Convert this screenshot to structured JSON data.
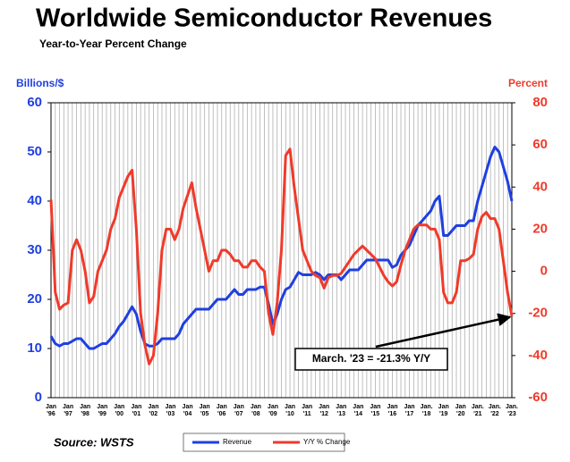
{
  "chart_data": {
    "type": "line",
    "title": "Worldwide Semiconductor Revenues",
    "subtitle": "Year-to-Year Percent Change",
    "y_label": "Billions/$",
    "y2_label": "Percent",
    "source": "Source: WSTS",
    "annotation": "March. '23 = -21.3% Y/Y",
    "categories": [
      "Jan '96",
      null,
      null,
      null,
      "Jan '97",
      null,
      null,
      null,
      "Jan '98",
      null,
      null,
      null,
      "Jan '99",
      null,
      null,
      null,
      "Jan '00",
      null,
      null,
      null,
      "Jan '01",
      null,
      null,
      null,
      "Jan '02",
      null,
      null,
      null,
      "Jan '03",
      null,
      null,
      null,
      "Jan '04",
      null,
      null,
      null,
      "Jan '05",
      null,
      null,
      null,
      "Jan '06",
      null,
      null,
      null,
      "Jan '07",
      null,
      null,
      null,
      "Jan '08",
      null,
      null,
      null,
      "Jan '09",
      null,
      null,
      null,
      "Jan '10",
      null,
      null,
      null,
      "Jan '11",
      null,
      null,
      null,
      "Jan '12",
      null,
      null,
      null,
      "Jan '13",
      null,
      null,
      null,
      "Jan '14",
      null,
      null,
      null,
      "Jan '15",
      null,
      null,
      null,
      "Jan '16",
      null,
      null,
      null,
      "Jan '17",
      null,
      null,
      null,
      "Jan. '18",
      null,
      null,
      null,
      "Jan '19",
      null,
      null,
      null,
      "Jan '20",
      null,
      null,
      null,
      "Jan. '21",
      null,
      null,
      null,
      "Jan. '22",
      null,
      null,
      null,
      "Jan. '23"
    ],
    "series": [
      {
        "name": "Revenue",
        "color": "#1f3fe0",
        "axis": "y",
        "values": [
          12.5,
          11,
          10.5,
          11,
          11,
          11.5,
          12,
          12,
          11,
          10,
          10,
          10.5,
          11,
          11,
          12,
          13,
          14.5,
          15.5,
          17,
          18.5,
          17,
          13.5,
          11,
          10.5,
          10.5,
          11,
          12,
          12,
          12,
          12,
          13,
          15,
          16,
          17,
          18,
          18,
          18,
          18,
          19,
          20,
          20,
          20,
          21,
          22,
          21,
          21,
          22,
          22,
          22,
          22.5,
          22.5,
          19,
          15,
          17,
          20,
          22,
          22.5,
          24,
          25.5,
          25,
          25,
          25,
          25.5,
          25,
          24,
          25,
          25,
          25,
          24,
          25,
          26,
          26,
          26,
          27,
          28,
          28,
          28,
          28,
          28,
          28,
          26.5,
          27,
          29,
          30,
          31,
          33,
          35,
          36,
          37,
          38,
          40,
          41,
          33,
          33,
          34,
          35,
          35,
          35,
          36,
          36,
          40,
          43,
          46,
          49,
          51,
          50,
          47,
          44,
          40
        ]
      },
      {
        "name": "Y/Y % Change",
        "color": "#f03a2a",
        "axis": "y2",
        "values": [
          34,
          -10,
          -18,
          -16,
          -15,
          10,
          15,
          10,
          0,
          -15,
          -12,
          0,
          5,
          10,
          20,
          25,
          35,
          40,
          45,
          48,
          20,
          -20,
          -35,
          -44,
          -40,
          -20,
          10,
          20,
          20,
          15,
          20,
          30,
          36,
          42,
          30,
          20,
          10,
          0,
          5,
          5,
          10,
          10,
          8,
          5,
          5,
          2,
          2,
          5,
          5,
          2,
          0,
          -20,
          -30,
          -15,
          10,
          55,
          58,
          40,
          25,
          10,
          5,
          0,
          -2,
          -3,
          -8,
          -3,
          -2,
          -2,
          -1,
          2,
          5,
          8,
          10,
          12,
          10,
          8,
          6,
          2,
          -2,
          -5,
          -7,
          -5,
          3,
          10,
          15,
          20,
          22,
          22,
          22,
          20,
          20,
          15,
          -10,
          -15,
          -15,
          -10,
          5,
          5,
          6,
          8,
          20,
          26,
          28,
          25,
          25,
          20,
          5,
          -10,
          -21.3
        ]
      }
    ],
    "ylim": [
      0,
      60
    ],
    "yticks": [
      0,
      10,
      20,
      30,
      40,
      50,
      60
    ],
    "y2lim": [
      -60,
      80
    ],
    "y2ticks": [
      -60,
      -40,
      -20,
      0,
      20,
      40,
      60,
      80
    ],
    "grid": true
  }
}
